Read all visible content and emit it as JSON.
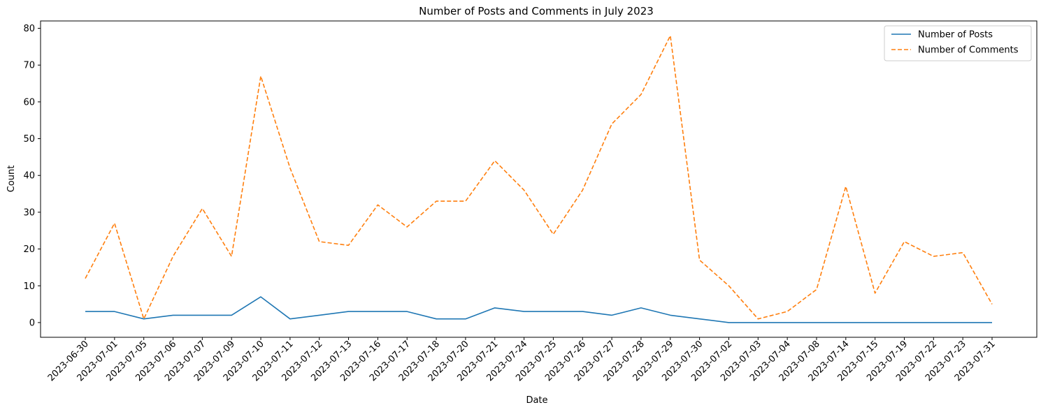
{
  "chart_data": {
    "type": "line",
    "title": "Number of Posts and Comments in July 2023",
    "xlabel": "Date",
    "ylabel": "Count",
    "ylim": [
      -4,
      82
    ],
    "yticks": [
      0,
      10,
      20,
      30,
      40,
      50,
      60,
      70,
      80
    ],
    "grid": false,
    "legend_position": "top-right",
    "categories": [
      "2023-06-30",
      "2023-07-01",
      "2023-07-05",
      "2023-07-06",
      "2023-07-07",
      "2023-07-09",
      "2023-07-10",
      "2023-07-11",
      "2023-07-12",
      "2023-07-13",
      "2023-07-16",
      "2023-07-17",
      "2023-07-18",
      "2023-07-20",
      "2023-07-21",
      "2023-07-24",
      "2023-07-25",
      "2023-07-26",
      "2023-07-27",
      "2023-07-28",
      "2023-07-29",
      "2023-07-30",
      "2023-07-02",
      "2023-07-03",
      "2023-07-04",
      "2023-07-08",
      "2023-07-14",
      "2023-07-15",
      "2023-07-19",
      "2023-07-22",
      "2023-07-23",
      "2023-07-31"
    ],
    "series": [
      {
        "name": "Number of Posts",
        "color": "#1f77b4",
        "style": "solid",
        "values": [
          3,
          3,
          1,
          2,
          2,
          2,
          7,
          1,
          2,
          3,
          3,
          3,
          1,
          1,
          4,
          3,
          3,
          3,
          2,
          4,
          2,
          1,
          0,
          0,
          0,
          0,
          0,
          0,
          0,
          0,
          0,
          0
        ]
      },
      {
        "name": "Number of Comments",
        "color": "#ff7f0e",
        "style": "dashed",
        "values": [
          12,
          27,
          1,
          18,
          31,
          18,
          67,
          42,
          22,
          21,
          32,
          26,
          33,
          33,
          44,
          36,
          24,
          36,
          54,
          62,
          78,
          17,
          10,
          1,
          3,
          9,
          37,
          8,
          22,
          18,
          19,
          5
        ]
      }
    ]
  }
}
